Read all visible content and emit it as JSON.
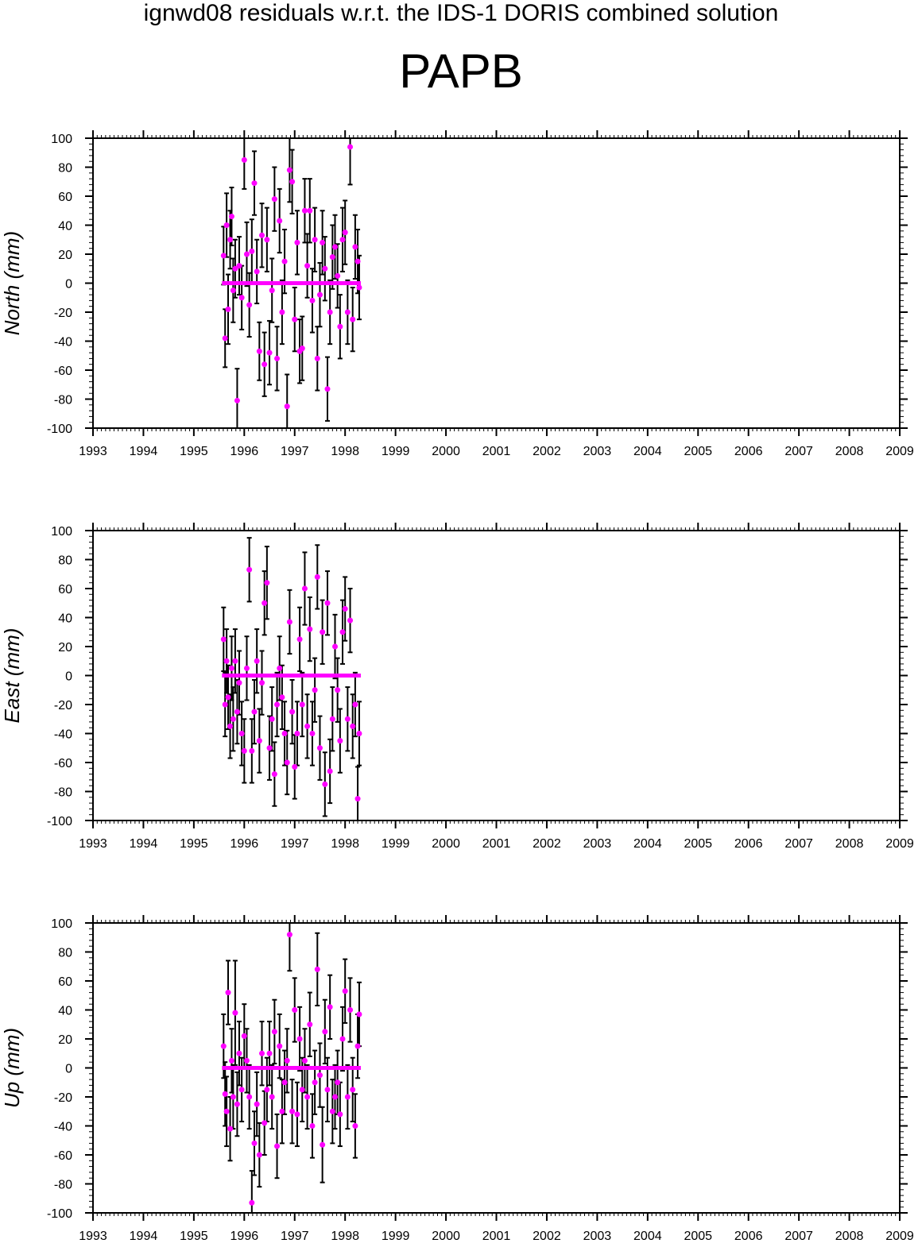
{
  "figure": {
    "title": "ignwd08 residuals w.r.t. the IDS-1 DORIS combined solution",
    "station": "PAPB"
  },
  "colors": {
    "points": "#ff00ff",
    "errorbars": "#000000",
    "frame": "#000000"
  },
  "chart_data": [
    {
      "type": "scatter",
      "ylabel": "North (mm)",
      "xlim": [
        1993,
        2009
      ],
      "ylim": [
        -100,
        100
      ],
      "xticks": [
        "1993",
        "1994",
        "1995",
        "1996",
        "1997",
        "1998",
        "1999",
        "2000",
        "2001",
        "2002",
        "2003",
        "2004",
        "2005",
        "2006",
        "2007",
        "2008",
        "2009"
      ],
      "yticks": [
        "100",
        "80",
        "60",
        "40",
        "20",
        "0",
        "-20",
        "-40",
        "-60",
        "-80",
        "-100"
      ],
      "zero_line": 0,
      "series": [
        {
          "x": [
            1995.59,
            1995.62,
            1995.65,
            1995.68,
            1995.72,
            1995.75,
            1995.78,
            1995.82,
            1995.86,
            1995.9,
            1995.95,
            1996.0,
            1996.05,
            1996.1,
            1996.15,
            1996.2,
            1996.25,
            1996.3,
            1996.35,
            1996.4,
            1996.45,
            1996.5,
            1996.55,
            1996.6,
            1996.65,
            1996.7,
            1996.75,
            1996.8,
            1996.85,
            1996.9,
            1996.95,
            1997.0,
            1997.05,
            1997.1,
            1997.15,
            1997.2,
            1997.25,
            1997.3,
            1997.35,
            1997.4,
            1997.45,
            1997.5,
            1997.55,
            1997.6,
            1997.65,
            1997.7,
            1997.75,
            1997.8,
            1997.85,
            1997.9,
            1997.95,
            1998.0,
            1998.05,
            1998.1,
            1998.15,
            1998.2,
            1998.25,
            1998.28
          ],
          "y": [
            19,
            -38,
            40,
            -18,
            30,
            46,
            -5,
            10,
            -81,
            12,
            -10,
            85,
            20,
            -15,
            22,
            69,
            8,
            -47,
            33,
            -56,
            30,
            -48,
            -5,
            58,
            -52,
            43,
            -20,
            15,
            -85,
            78,
            70,
            -25,
            28,
            -47,
            -45,
            50,
            12,
            50,
            -12,
            30,
            -52,
            -8,
            28,
            10,
            -73,
            -20,
            18,
            25,
            5,
            -30,
            30,
            35,
            -20,
            94,
            -25,
            25,
            15,
            -3
          ],
          "err": [
            20,
            20,
            22,
            24,
            20,
            20,
            22,
            20,
            22,
            20,
            22,
            20,
            22,
            22,
            22,
            22,
            22,
            20,
            22,
            22,
            22,
            22,
            22,
            22,
            22,
            22,
            22,
            22,
            22,
            22,
            22,
            22,
            22,
            22,
            22,
            22,
            22,
            22,
            22,
            22,
            22,
            22,
            22,
            22,
            22,
            22,
            22,
            22,
            22,
            22,
            22,
            22,
            22,
            26,
            22,
            22,
            22,
            22
          ]
        }
      ]
    },
    {
      "type": "scatter",
      "ylabel": "East (mm)",
      "xlim": [
        1993,
        2009
      ],
      "ylim": [
        -100,
        100
      ],
      "xticks": [
        "1993",
        "1994",
        "1995",
        "1996",
        "1997",
        "1998",
        "1999",
        "2000",
        "2001",
        "2002",
        "2003",
        "2004",
        "2005",
        "2006",
        "2007",
        "2008",
        "2009"
      ],
      "yticks": [
        "100",
        "80",
        "60",
        "40",
        "20",
        "0",
        "-20",
        "-40",
        "-60",
        "-80",
        "-100"
      ],
      "zero_line": 0,
      "series": [
        {
          "x": [
            1995.59,
            1995.62,
            1995.65,
            1995.68,
            1995.72,
            1995.75,
            1995.78,
            1995.82,
            1995.86,
            1995.9,
            1995.95,
            1996.0,
            1996.05,
            1996.1,
            1996.15,
            1996.2,
            1996.25,
            1996.3,
            1996.35,
            1996.4,
            1996.45,
            1996.5,
            1996.55,
            1996.6,
            1996.65,
            1996.7,
            1996.75,
            1996.8,
            1996.85,
            1996.9,
            1996.95,
            1997.0,
            1997.05,
            1997.1,
            1997.15,
            1997.2,
            1997.25,
            1997.3,
            1997.35,
            1997.4,
            1997.45,
            1997.5,
            1997.55,
            1997.6,
            1997.65,
            1997.7,
            1997.75,
            1997.8,
            1997.85,
            1997.9,
            1997.95,
            1998.0,
            1998.05,
            1998.1,
            1998.15,
            1998.2,
            1998.25,
            1998.28
          ],
          "y": [
            25,
            -20,
            10,
            -15,
            -35,
            5,
            -30,
            10,
            -25,
            -5,
            -40,
            -52,
            5,
            73,
            -52,
            -25,
            10,
            -45,
            -5,
            50,
            64,
            -50,
            -30,
            -68,
            -20,
            5,
            -15,
            -40,
            -60,
            37,
            -25,
            -63,
            -40,
            25,
            -20,
            60,
            -35,
            32,
            -40,
            -10,
            68,
            -50,
            30,
            -75,
            50,
            -66,
            -30,
            20,
            -10,
            -45,
            30,
            46,
            -30,
            38,
            -35,
            -20,
            -85,
            -40
          ],
          "err": [
            22,
            22,
            22,
            22,
            22,
            22,
            22,
            22,
            22,
            22,
            22,
            22,
            22,
            22,
            22,
            22,
            22,
            22,
            22,
            22,
            25,
            22,
            22,
            22,
            22,
            22,
            22,
            22,
            22,
            22,
            22,
            22,
            22,
            22,
            22,
            25,
            22,
            22,
            22,
            22,
            22,
            22,
            22,
            22,
            22,
            22,
            22,
            22,
            22,
            22,
            22,
            22,
            22,
            22,
            22,
            22,
            22,
            22
          ]
        }
      ]
    },
    {
      "type": "scatter",
      "ylabel": "Up (mm)",
      "xlim": [
        1993,
        2009
      ],
      "ylim": [
        -100,
        100
      ],
      "xticks": [
        "1993",
        "1994",
        "1995",
        "1996",
        "1997",
        "1998",
        "1999",
        "2000",
        "2001",
        "2002",
        "2003",
        "2004",
        "2005",
        "2006",
        "2007",
        "2008",
        "2009"
      ],
      "yticks": [
        "100",
        "80",
        "60",
        "40",
        "20",
        "0",
        "-20",
        "-40",
        "-60",
        "-80",
        "-100"
      ],
      "zero_line": 0,
      "series": [
        {
          "x": [
            1995.59,
            1995.62,
            1995.65,
            1995.68,
            1995.72,
            1995.75,
            1995.78,
            1995.82,
            1995.86,
            1995.9,
            1995.95,
            1996.0,
            1996.05,
            1996.1,
            1996.15,
            1996.2,
            1996.25,
            1996.3,
            1996.35,
            1996.4,
            1996.45,
            1996.5,
            1996.55,
            1996.6,
            1996.65,
            1996.7,
            1996.75,
            1996.8,
            1996.85,
            1996.9,
            1996.95,
            1997.0,
            1997.05,
            1997.1,
            1997.15,
            1997.2,
            1997.25,
            1997.3,
            1997.35,
            1997.4,
            1997.45,
            1997.5,
            1997.55,
            1997.6,
            1997.65,
            1997.7,
            1997.75,
            1997.8,
            1997.85,
            1997.9,
            1997.95,
            1998.0,
            1998.05,
            1998.1,
            1998.15,
            1998.2,
            1998.25,
            1998.28
          ],
          "y": [
            15,
            -18,
            -30,
            52,
            -42,
            5,
            -20,
            38,
            -25,
            10,
            -15,
            22,
            5,
            -20,
            -93,
            -52,
            -25,
            -60,
            10,
            -38,
            -15,
            10,
            -20,
            25,
            -54,
            15,
            -30,
            -10,
            5,
            92,
            -30,
            40,
            -32,
            20,
            -15,
            5,
            -20,
            30,
            -40,
            -10,
            68,
            -5,
            -53,
            25,
            -15,
            42,
            -30,
            -20,
            -10,
            -32,
            20,
            53,
            -20,
            40,
            -15,
            -40,
            15,
            37
          ],
          "err": [
            22,
            22,
            24,
            22,
            22,
            22,
            22,
            36,
            22,
            22,
            22,
            22,
            22,
            22,
            22,
            22,
            22,
            22,
            22,
            22,
            22,
            22,
            22,
            22,
            22,
            22,
            22,
            22,
            22,
            25,
            22,
            22,
            22,
            22,
            22,
            22,
            22,
            22,
            22,
            22,
            25,
            22,
            26,
            22,
            22,
            22,
            22,
            22,
            22,
            22,
            22,
            22,
            22,
            22,
            22,
            22,
            22,
            22
          ]
        }
      ]
    }
  ]
}
